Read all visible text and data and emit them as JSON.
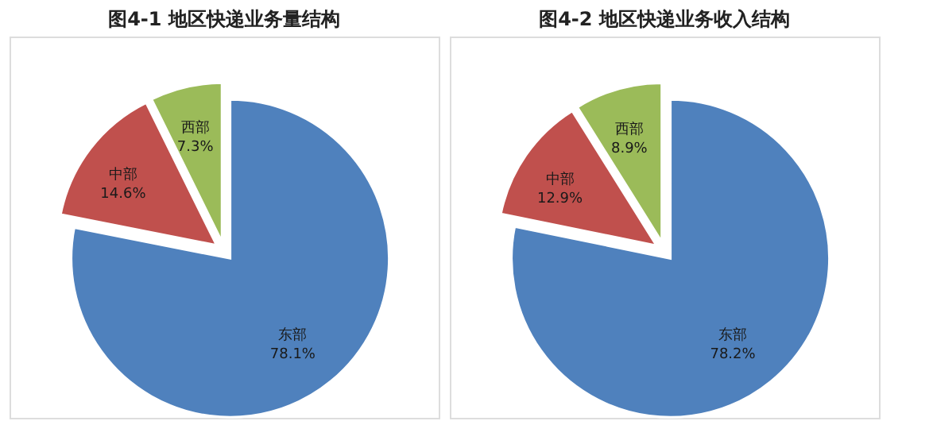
{
  "chart_data": [
    {
      "type": "pie",
      "title": "图4-1   地区快递业务量结构",
      "categories": [
        "东部",
        "中部",
        "西部"
      ],
      "values": [
        78.1,
        14.6,
        7.3
      ],
      "value_labels": [
        "78.1%",
        "14.6%",
        "7.3%"
      ],
      "colors": [
        "#4f81bd",
        "#c0504d",
        "#9bbb59"
      ]
    },
    {
      "type": "pie",
      "title": "图4-2   地区快递业务收入结构",
      "categories": [
        "东部",
        "中部",
        "西部"
      ],
      "values": [
        78.2,
        12.9,
        8.9
      ],
      "value_labels": [
        "78.2%",
        "12.9%",
        "8.9%"
      ],
      "colors": [
        "#4f81bd",
        "#c0504d",
        "#9bbb59"
      ]
    }
  ]
}
